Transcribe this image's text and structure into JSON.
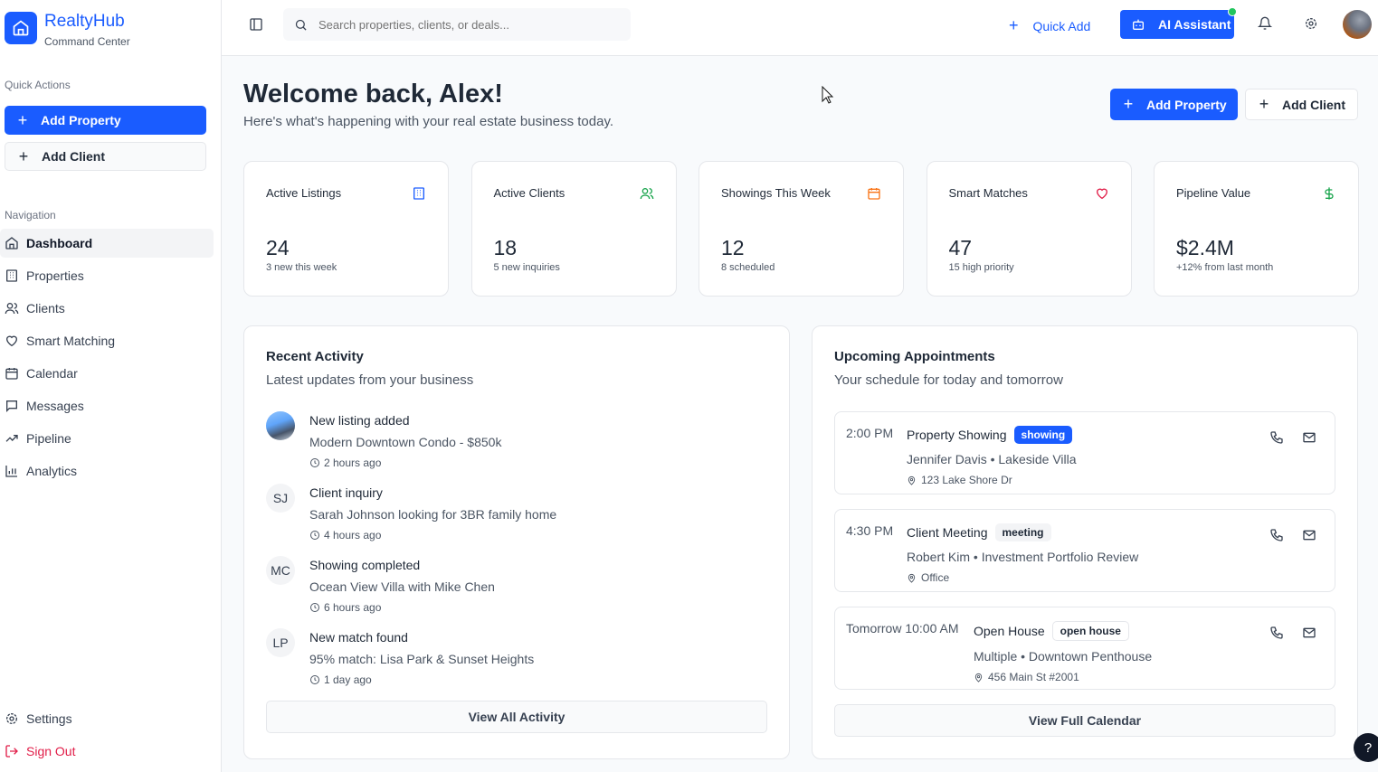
{
  "brand": {
    "name": "RealtyHub",
    "subtitle": "Command Center"
  },
  "sidebar": {
    "quick_actions_label": "Quick Actions",
    "add_property": "Add Property",
    "add_client": "Add Client",
    "navigation_label": "Navigation",
    "items": [
      {
        "label": "Dashboard",
        "icon": "home-icon",
        "active": true
      },
      {
        "label": "Properties",
        "icon": "building-icon"
      },
      {
        "label": "Clients",
        "icon": "users-icon"
      },
      {
        "label": "Smart Matching",
        "icon": "heart-icon"
      },
      {
        "label": "Calendar",
        "icon": "calendar-icon"
      },
      {
        "label": "Messages",
        "icon": "message-icon"
      },
      {
        "label": "Pipeline",
        "icon": "trending-icon"
      },
      {
        "label": "Analytics",
        "icon": "bar-chart-icon"
      }
    ],
    "settings": "Settings",
    "sign_out": "Sign Out"
  },
  "topbar": {
    "search_placeholder": "Search properties, clients, or deals...",
    "quick_add": "Quick Add",
    "ai_assistant": "AI Assistant"
  },
  "header": {
    "title": "Welcome back, Alex!",
    "subtitle": "Here's what's happening with your real estate business today.",
    "add_property": "Add Property",
    "add_client": "Add Client"
  },
  "stats": [
    {
      "title": "Active Listings",
      "value": "24",
      "note": "3 new this week",
      "icon": "building-icon",
      "color": "#1a5cff"
    },
    {
      "title": "Active Clients",
      "value": "18",
      "note": "5 new inquiries",
      "icon": "users-icon",
      "color": "#16a34a"
    },
    {
      "title": "Showings This Week",
      "value": "12",
      "note": "8 scheduled",
      "icon": "calendar-icon",
      "color": "#f97316"
    },
    {
      "title": "Smart Matches",
      "value": "47",
      "note": "15 high priority",
      "icon": "heart-icon",
      "color": "#e11d48"
    },
    {
      "title": "Pipeline Value",
      "value": "$2.4M",
      "note": "+12% from last month",
      "icon": "dollar-icon",
      "color": "#16a34a"
    }
  ],
  "activity": {
    "title": "Recent Activity",
    "subtitle": "Latest updates from your business",
    "items": [
      {
        "avatar": "",
        "title": "New listing added",
        "detail": "Modern Downtown Condo - $850k",
        "time": "2 hours ago"
      },
      {
        "avatar": "SJ",
        "title": "Client inquiry",
        "detail": "Sarah Johnson looking for 3BR family home",
        "time": "4 hours ago"
      },
      {
        "avatar": "MC",
        "title": "Showing completed",
        "detail": "Ocean View Villa with Mike Chen",
        "time": "6 hours ago"
      },
      {
        "avatar": "LP",
        "title": "New match found",
        "detail": "95% match: Lisa Park & Sunset Heights",
        "time": "1 day ago"
      }
    ],
    "view_all": "View All Activity"
  },
  "appointments": {
    "title": "Upcoming Appointments",
    "subtitle": "Your schedule for today and tomorrow",
    "items": [
      {
        "time": "2:00 PM",
        "type": "Property Showing",
        "badge": "showing",
        "detail": "Jennifer Davis • Lakeside Villa",
        "location": "123 Lake Shore Dr"
      },
      {
        "time": "4:30 PM",
        "type": "Client Meeting",
        "badge": "meeting",
        "detail": "Robert Kim • Investment Portfolio Review",
        "location": "Office"
      },
      {
        "time": "Tomorrow 10:00 AM",
        "type": "Open House",
        "badge": "open house",
        "detail": "Multiple • Downtown Penthouse",
        "location": "456 Main St #2001"
      }
    ],
    "view_all": "View Full Calendar"
  },
  "help": "?",
  "colors": {
    "accent": "#1a5cff",
    "danger": "#e11d48",
    "online": "#22c55e"
  }
}
